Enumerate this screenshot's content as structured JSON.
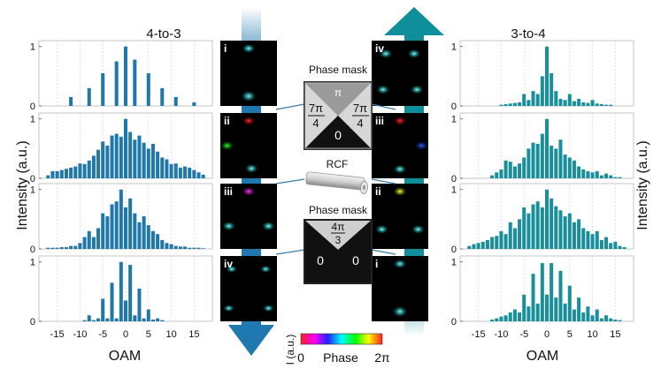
{
  "panel_titles": {
    "left": "4-to-3",
    "right": "3-to-4"
  },
  "y_axis_label": "Intensity (a.u.)",
  "x_axis_label": "OAM",
  "x_ticks": [
    "-15",
    "-10",
    "-5",
    "0",
    "5",
    "10",
    "15"
  ],
  "y_ticks": [
    "0",
    "1"
  ],
  "x_range": [
    -19,
    19
  ],
  "image_labels": {
    "left": [
      "i",
      "ii",
      "iii",
      "iv"
    ],
    "right": [
      "iv",
      "iii",
      "ii",
      "i"
    ]
  },
  "center": {
    "mask1_title": "Phase mask",
    "mask1_top": "π",
    "mask1_left_num": "7π",
    "mask1_left_den": "4",
    "mask1_right_num": "7π",
    "mask1_right_den": "4",
    "mask1_bottom": "0",
    "fiber_label": "RCF",
    "mask2_title": "Phase mask",
    "mask2_top_num": "4π",
    "mask2_top_den": "3",
    "mask2_left": "0",
    "mask2_right": "0"
  },
  "colorbar": {
    "ylabel": "I (a.u.)",
    "min_label": "0",
    "title": "Phase",
    "max_label": "2π"
  },
  "colors": {
    "bar": "#1f78a8",
    "bar_right": "#1a8f9c",
    "arrow_left": "#1f78b0",
    "arrow_right": "#0f8f9a"
  },
  "chart_data": [
    {
      "type": "bar",
      "panel": "left",
      "row": 1,
      "ylim": [
        0,
        1.1
      ],
      "x": [
        -17,
        -16,
        -15,
        -14,
        -13,
        -12,
        -11,
        -10,
        -9,
        -8,
        -7,
        -6,
        -5,
        -4,
        -3,
        -2,
        -1,
        0,
        1,
        2,
        3,
        4,
        5,
        6,
        7,
        8,
        9,
        10,
        11,
        12,
        13,
        14,
        15,
        16,
        17
      ],
      "values": [
        0,
        0,
        0,
        0,
        0,
        0.15,
        0,
        0,
        0,
        0.3,
        0,
        0,
        0.55,
        0,
        0,
        0.75,
        0,
        1.0,
        0,
        0.78,
        0,
        0,
        0.55,
        0,
        0,
        0.3,
        0,
        0,
        0.15,
        0,
        0,
        0,
        0.06,
        0,
        0
      ]
    },
    {
      "type": "bar",
      "panel": "left",
      "row": 2,
      "ylim": [
        0,
        1.1
      ],
      "x": [
        -17,
        -16,
        -15,
        -14,
        -13,
        -12,
        -11,
        -10,
        -9,
        -8,
        -7,
        -6,
        -5,
        -4,
        -3,
        -2,
        -1,
        0,
        1,
        2,
        3,
        4,
        5,
        6,
        7,
        8,
        9,
        10,
        11,
        12,
        13,
        14,
        15,
        16,
        17
      ],
      "values": [
        0.05,
        0.12,
        0.12,
        0.14,
        0.16,
        0.18,
        0.2,
        0.25,
        0.24,
        0.3,
        0.38,
        0.48,
        0.62,
        0.55,
        0.72,
        0.75,
        0.7,
        1.0,
        0.78,
        0.65,
        0.72,
        0.6,
        0.5,
        0.58,
        0.45,
        0.35,
        0.32,
        0.24,
        0.25,
        0.18,
        0.2,
        0.18,
        0.14,
        0.1,
        0.06
      ]
    },
    {
      "type": "bar",
      "panel": "left",
      "row": 3,
      "ylim": [
        0,
        1.1
      ],
      "x": [
        -17,
        -16,
        -15,
        -14,
        -13,
        -12,
        -11,
        -10,
        -9,
        -8,
        -7,
        -6,
        -5,
        -4,
        -3,
        -2,
        -1,
        0,
        1,
        2,
        3,
        4,
        5,
        6,
        7,
        8,
        9,
        10,
        11,
        12,
        13,
        14,
        15,
        16,
        17
      ],
      "values": [
        0.02,
        0.02,
        0.02,
        0.03,
        0.03,
        0.05,
        0.05,
        0.1,
        0.2,
        0.3,
        0.2,
        0.35,
        0.6,
        0.55,
        0.75,
        0.8,
        1.0,
        0.7,
        0.85,
        0.6,
        0.45,
        0.55,
        0.4,
        0.3,
        0.25,
        0.15,
        0.1,
        0.08,
        0.05,
        0.04,
        0.04,
        0.02,
        0.02,
        0.02,
        0.01
      ]
    },
    {
      "type": "bar",
      "panel": "left",
      "row": 4,
      "ylim": [
        0,
        1.1
      ],
      "x": [
        -17,
        -16,
        -15,
        -14,
        -13,
        -12,
        -11,
        -10,
        -9,
        -8,
        -7,
        -6,
        -5,
        -4,
        -3,
        -2,
        -1,
        0,
        1,
        2,
        3,
        4,
        5,
        6,
        7,
        8,
        9,
        10,
        11,
        12,
        13,
        14,
        15,
        16,
        17
      ],
      "values": [
        0,
        0,
        0,
        0,
        0,
        0,
        0,
        0,
        0.02,
        0.1,
        0.02,
        0.05,
        0.38,
        0.05,
        0.65,
        0.05,
        1.0,
        0.35,
        0.95,
        0.1,
        0.55,
        0.05,
        0.2,
        0.03,
        0.05,
        0.02,
        0,
        0,
        0,
        0,
        0,
        0,
        0,
        0,
        0
      ]
    },
    {
      "type": "bar",
      "panel": "right",
      "row": 1,
      "ylim": [
        0,
        1.1
      ],
      "x": [
        -17,
        -16,
        -15,
        -14,
        -13,
        -12,
        -11,
        -10,
        -9,
        -8,
        -7,
        -6,
        -5,
        -4,
        -3,
        -2,
        -1,
        0,
        1,
        2,
        3,
        4,
        5,
        6,
        7,
        8,
        9,
        10,
        11,
        12,
        13,
        14,
        15,
        16,
        17
      ],
      "values": [
        0,
        0,
        0,
        0,
        0,
        0,
        0,
        0.02,
        0.03,
        0.04,
        0.05,
        0.06,
        0.2,
        0.1,
        0.25,
        0.2,
        0.5,
        1.0,
        0.55,
        0.25,
        0.12,
        0.1,
        0.2,
        0.08,
        0.12,
        0.06,
        0.05,
        0.1,
        0.04,
        0.03,
        0.02,
        0.02,
        0,
        0,
        0
      ]
    },
    {
      "type": "bar",
      "panel": "right",
      "row": 2,
      "ylim": [
        0,
        1.1
      ],
      "x": [
        -17,
        -16,
        -15,
        -14,
        -13,
        -12,
        -11,
        -10,
        -9,
        -8,
        -7,
        -6,
        -5,
        -4,
        -3,
        -2,
        -1,
        0,
        1,
        2,
        3,
        4,
        5,
        6,
        7,
        8,
        9,
        10,
        11,
        12,
        13,
        14,
        15,
        16,
        17
      ],
      "values": [
        0,
        0,
        0,
        0,
        0,
        0.05,
        0.1,
        0.15,
        0.3,
        0.28,
        0.2,
        0.25,
        0.35,
        0.5,
        0.6,
        0.58,
        0.75,
        1.0,
        0.55,
        0.5,
        0.65,
        0.4,
        0.35,
        0.3,
        0.2,
        0.15,
        0.12,
        0.1,
        0.12,
        0.05,
        0.08,
        0.05,
        0.02,
        0.02,
        0
      ]
    },
    {
      "type": "bar",
      "panel": "right",
      "row": 3,
      "ylim": [
        0,
        1.1
      ],
      "x": [
        -17,
        -16,
        -15,
        -14,
        -13,
        -12,
        -11,
        -10,
        -9,
        -8,
        -7,
        -6,
        -5,
        -4,
        -3,
        -2,
        -1,
        0,
        1,
        2,
        3,
        4,
        5,
        6,
        7,
        8,
        9,
        10,
        11,
        12,
        13,
        14,
        15,
        16,
        17
      ],
      "values": [
        0.05,
        0.08,
        0.1,
        0.12,
        0.15,
        0.2,
        0.22,
        0.3,
        0.25,
        0.45,
        0.35,
        0.5,
        0.7,
        0.6,
        0.75,
        0.8,
        0.7,
        1.0,
        0.85,
        0.72,
        0.65,
        0.55,
        0.6,
        0.45,
        0.5,
        0.35,
        0.3,
        0.25,
        0.3,
        0.15,
        0.2,
        0.1,
        0.12,
        0.05,
        0.03
      ]
    },
    {
      "type": "bar",
      "panel": "right",
      "row": 4,
      "ylim": [
        0,
        1.1
      ],
      "x": [
        -17,
        -16,
        -15,
        -14,
        -13,
        -12,
        -11,
        -10,
        -9,
        -8,
        -7,
        -6,
        -5,
        -4,
        -3,
        -2,
        -1,
        0,
        1,
        2,
        3,
        4,
        5,
        6,
        7,
        8,
        9,
        10,
        11,
        12,
        13,
        14,
        15,
        16,
        17
      ],
      "values": [
        0,
        0,
        0,
        0,
        0,
        0.03,
        0.05,
        0.08,
        0.1,
        0.15,
        0.2,
        0.15,
        0.45,
        0.25,
        0.8,
        0.3,
        0.98,
        0.45,
        0.98,
        0.4,
        0.85,
        0.3,
        0.6,
        0.2,
        0.4,
        0.15,
        0.25,
        0.1,
        0.2,
        0.05,
        0.1,
        0.05,
        0.03,
        0.02,
        0
      ]
    }
  ]
}
